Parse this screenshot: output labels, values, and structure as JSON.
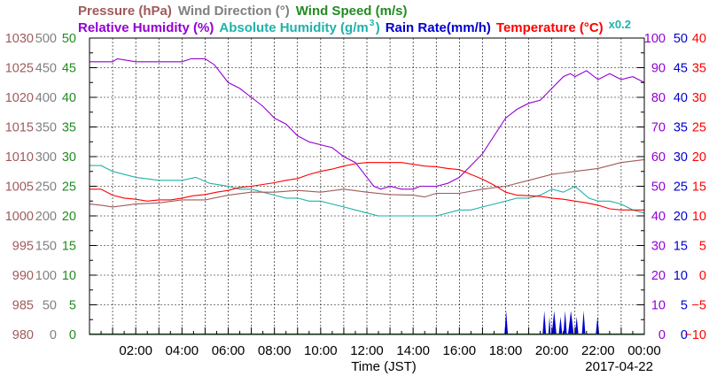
{
  "chart_data": {
    "type": "line",
    "header": {
      "row1": [
        {
          "text": "Pressure (hPa)",
          "color": "#a05a5a"
        },
        {
          "text": "Wind Direction (°)",
          "color": "#808080"
        },
        {
          "text": "Wind Speed (m/s)",
          "color": "#228b22"
        }
      ],
      "row2": [
        {
          "text": "Relative Humidity (%)",
          "color": "#9400d3"
        },
        {
          "text": "Absolute Humidity (g/m",
          "sup": "3",
          "tail": ")",
          "color": "#20b2aa"
        },
        {
          "text": "Rain Rate(mm/h)",
          "color": "#0000cd"
        },
        {
          "text": "Temperature (°C)",
          "color": "#ff0000"
        },
        {
          "text": "x0.2",
          "color": "#20b2aa"
        }
      ]
    },
    "xlabel": "Time (JST)",
    "date_label": "2017-04-22",
    "x_ticks": [
      "02:00",
      "04:00",
      "06:00",
      "08:00",
      "10:00",
      "12:00",
      "14:00",
      "16:00",
      "18:00",
      "20:00",
      "22:00",
      "00:00"
    ],
    "x_range_hours": [
      0,
      24
    ],
    "grid": true,
    "left_axes": [
      {
        "name": "pressure",
        "color": "#a05a5a",
        "range": [
          980,
          1030
        ],
        "ticks": [
          "980",
          "985",
          "990",
          "995",
          "1000",
          "1005",
          "1010",
          "1015",
          "1020",
          "1025",
          "1030"
        ]
      },
      {
        "name": "wind_direction",
        "color": "#808080",
        "range": [
          0,
          500
        ],
        "ticks": [
          "0",
          "50",
          "100",
          "150",
          "200",
          "250",
          "300",
          "350",
          "400",
          "450",
          "500"
        ]
      },
      {
        "name": "wind_speed",
        "color": "#228b22",
        "range": [
          0,
          50
        ],
        "ticks": [
          "0",
          "5",
          "10",
          "15",
          "20",
          "25",
          "30",
          "35",
          "40",
          "45",
          "50"
        ]
      }
    ],
    "right_axes": [
      {
        "name": "humidity",
        "color": "#9400d3",
        "range": [
          0,
          100
        ],
        "ticks": [
          "0",
          "10",
          "20",
          "30",
          "40",
          "50",
          "60",
          "70",
          "80",
          "90",
          "100"
        ]
      },
      {
        "name": "rain_rate",
        "color": "#0000cd",
        "range": [
          0,
          50
        ],
        "ticks": [
          "0",
          "5",
          "10",
          "15",
          "20",
          "25",
          "30",
          "35",
          "40",
          "45",
          "50"
        ]
      },
      {
        "name": "temperature",
        "color": "#ff0000",
        "range": [
          -10,
          40
        ],
        "ticks": [
          "−10",
          "−5",
          "0",
          "5",
          "10",
          "15",
          "20",
          "25",
          "30",
          "35",
          "40"
        ]
      }
    ],
    "series": [
      {
        "name": "Relative Humidity",
        "axis": "humidity",
        "color": "#9400d3",
        "points": [
          [
            0,
            92
          ],
          [
            1,
            92
          ],
          [
            1.2,
            93
          ],
          [
            2,
            92
          ],
          [
            3,
            92
          ],
          [
            4,
            92
          ],
          [
            4.4,
            93
          ],
          [
            5,
            93
          ],
          [
            5.4,
            91
          ],
          [
            6,
            85
          ],
          [
            6.5,
            83
          ],
          [
            7,
            80
          ],
          [
            7.5,
            77
          ],
          [
            8,
            73
          ],
          [
            8.5,
            71
          ],
          [
            9,
            67
          ],
          [
            9.5,
            65
          ],
          [
            10,
            64
          ],
          [
            10.5,
            63
          ],
          [
            11,
            60
          ],
          [
            11.5,
            58
          ],
          [
            11.8,
            55
          ],
          [
            12,
            53
          ],
          [
            12.3,
            50
          ],
          [
            12.6,
            49
          ],
          [
            13,
            50
          ],
          [
            13.5,
            49
          ],
          [
            14,
            49
          ],
          [
            14.3,
            50
          ],
          [
            14.6,
            50
          ],
          [
            15,
            50
          ],
          [
            15.5,
            51
          ],
          [
            16,
            53
          ],
          [
            16.5,
            57
          ],
          [
            17,
            61
          ],
          [
            17.5,
            67
          ],
          [
            18,
            73
          ],
          [
            18.5,
            76
          ],
          [
            19,
            78
          ],
          [
            19.5,
            79
          ],
          [
            20,
            83
          ],
          [
            20.5,
            87
          ],
          [
            20.8,
            88
          ],
          [
            21,
            87
          ],
          [
            21.5,
            89
          ],
          [
            22,
            86
          ],
          [
            22.5,
            88
          ],
          [
            23,
            86
          ],
          [
            23.5,
            87
          ],
          [
            24,
            85
          ]
        ]
      },
      {
        "name": "Absolute Humidity",
        "axis": "humidity",
        "color": "#20b2aa",
        "points": [
          [
            0,
            57
          ],
          [
            0.5,
            57
          ],
          [
            1,
            55
          ],
          [
            2,
            53
          ],
          [
            3,
            52
          ],
          [
            4,
            52
          ],
          [
            4.6,
            53
          ],
          [
            5.2,
            51
          ],
          [
            6,
            50
          ],
          [
            6.5,
            49
          ],
          [
            7,
            49
          ],
          [
            7.5,
            48
          ],
          [
            8,
            47
          ],
          [
            8.5,
            46
          ],
          [
            9,
            46
          ],
          [
            9.5,
            45
          ],
          [
            10,
            45
          ],
          [
            10.5,
            44
          ],
          [
            11,
            43
          ],
          [
            11.5,
            42
          ],
          [
            12,
            41
          ],
          [
            12.5,
            40
          ],
          [
            13,
            40
          ],
          [
            13.5,
            40
          ],
          [
            14,
            40
          ],
          [
            14.5,
            40
          ],
          [
            15,
            40
          ],
          [
            15.5,
            41
          ],
          [
            16,
            42
          ],
          [
            16.5,
            42
          ],
          [
            17,
            43
          ],
          [
            17.5,
            44
          ],
          [
            18,
            45
          ],
          [
            18.5,
            46
          ],
          [
            19,
            46
          ],
          [
            19.5,
            47
          ],
          [
            20,
            49
          ],
          [
            20.5,
            48
          ],
          [
            21,
            50
          ],
          [
            21.3,
            48
          ],
          [
            21.6,
            46
          ],
          [
            22,
            45
          ],
          [
            22.5,
            45
          ],
          [
            23,
            44
          ],
          [
            23.5,
            42
          ],
          [
            24,
            41
          ]
        ]
      },
      {
        "name": "Temperature",
        "axis": "temperature",
        "color": "#ff0000",
        "points": [
          [
            0,
            14.5
          ],
          [
            0.5,
            14.5
          ],
          [
            1,
            13.5
          ],
          [
            1.5,
            13
          ],
          [
            2,
            12.8
          ],
          [
            2.5,
            12.5
          ],
          [
            3,
            12.7
          ],
          [
            3.5,
            12.7
          ],
          [
            4,
            13
          ],
          [
            4.5,
            13.4
          ],
          [
            5,
            13.6
          ],
          [
            5.5,
            14
          ],
          [
            6,
            14.3
          ],
          [
            6.5,
            14.8
          ],
          [
            7,
            15
          ],
          [
            7.5,
            15.3
          ],
          [
            8,
            15.6
          ],
          [
            8.5,
            16
          ],
          [
            9,
            16.3
          ],
          [
            9.5,
            17
          ],
          [
            10,
            17.5
          ],
          [
            10.5,
            17.9
          ],
          [
            11,
            18.4
          ],
          [
            11.5,
            18.8
          ],
          [
            12,
            19
          ],
          [
            12.5,
            19
          ],
          [
            13,
            19
          ],
          [
            13.5,
            19
          ],
          [
            14,
            18.7
          ],
          [
            14.5,
            18.4
          ],
          [
            15,
            18.3
          ],
          [
            15.5,
            18
          ],
          [
            16,
            17.8
          ],
          [
            16.5,
            17
          ],
          [
            17,
            16.2
          ],
          [
            17.5,
            15.2
          ],
          [
            18,
            14
          ],
          [
            18.5,
            13.5
          ],
          [
            19,
            13.4
          ],
          [
            19.5,
            13.3
          ],
          [
            20,
            13
          ],
          [
            20.5,
            12.8
          ],
          [
            21,
            12.5
          ],
          [
            21.5,
            12.2
          ],
          [
            22,
            11.8
          ],
          [
            22.5,
            11.2
          ],
          [
            23,
            11
          ],
          [
            23.5,
            11
          ],
          [
            24,
            11
          ]
        ]
      },
      {
        "name": "Pressure",
        "axis": "pressure",
        "color": "#a05a5a",
        "points": [
          [
            0,
            1002
          ],
          [
            0.5,
            1001.8
          ],
          [
            1,
            1001.5
          ],
          [
            2,
            1002
          ],
          [
            3,
            1002.2
          ],
          [
            4,
            1002.7
          ],
          [
            5,
            1002.7
          ],
          [
            6,
            1003.5
          ],
          [
            7,
            1004
          ],
          [
            8,
            1004
          ],
          [
            9,
            1004.3
          ],
          [
            10,
            1004
          ],
          [
            11,
            1004.5
          ],
          [
            12,
            1004
          ],
          [
            13,
            1003.6
          ],
          [
            14,
            1003.5
          ],
          [
            14.5,
            1003.2
          ],
          [
            15,
            1003.8
          ],
          [
            16,
            1003.8
          ],
          [
            17,
            1004.5
          ],
          [
            18,
            1005
          ],
          [
            19,
            1006
          ],
          [
            20,
            1007
          ],
          [
            21,
            1007.5
          ],
          [
            22,
            1008
          ],
          [
            23,
            1009
          ],
          [
            24,
            1009.5
          ]
        ]
      }
    ],
    "rain_events": [
      {
        "start": 17.95,
        "end": 18.1,
        "value": 4
      },
      {
        "start": 19.6,
        "end": 19.75,
        "value": 4
      },
      {
        "start": 19.85,
        "end": 19.95,
        "value": 3
      },
      {
        "start": 20.0,
        "end": 20.2,
        "value": 4
      },
      {
        "start": 20.3,
        "end": 20.45,
        "value": 3
      },
      {
        "start": 20.5,
        "end": 20.65,
        "value": 4
      },
      {
        "start": 20.7,
        "end": 20.95,
        "value": 4
      },
      {
        "start": 21.0,
        "end": 21.15,
        "value": 3
      },
      {
        "start": 21.3,
        "end": 21.45,
        "value": 4
      },
      {
        "start": 21.9,
        "end": 22.05,
        "value": 3
      }
    ]
  }
}
